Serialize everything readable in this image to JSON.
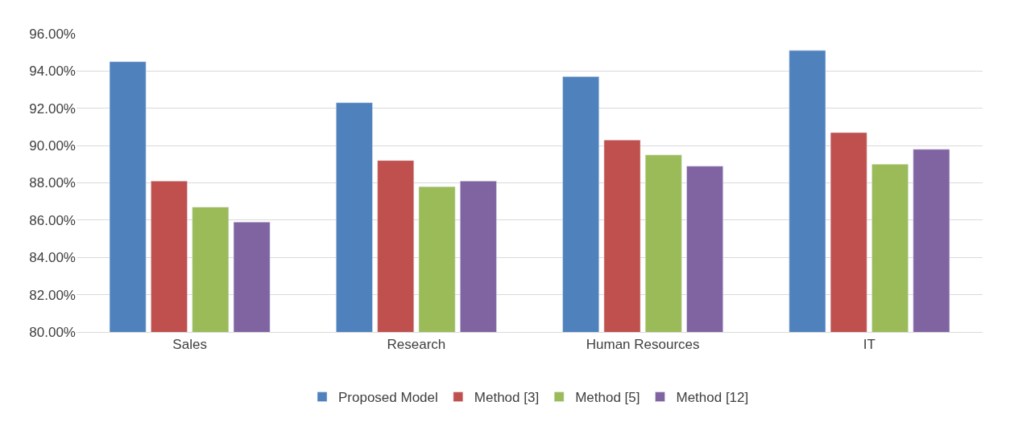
{
  "chart_data": {
    "type": "bar",
    "categories": [
      "Sales",
      "Research",
      "Human Resources",
      "IT"
    ],
    "series": [
      {
        "name": "Proposed Model",
        "color": "#4f81bd",
        "values": [
          94.5,
          92.3,
          93.7,
          95.1
        ]
      },
      {
        "name": "Method [3]",
        "color": "#c0504d",
        "values": [
          88.1,
          89.2,
          90.3,
          90.7
        ]
      },
      {
        "name": "Method [5]",
        "color": "#9bbb59",
        "values": [
          86.7,
          87.8,
          89.5,
          89.0
        ]
      },
      {
        "name": "Method [12]",
        "color": "#8064a2",
        "values": [
          85.9,
          88.1,
          88.9,
          89.8
        ]
      }
    ],
    "ylim": [
      80,
      96
    ],
    "yticks": [
      {
        "value": 80,
        "label": "80.00%"
      },
      {
        "value": 82,
        "label": "82.00%"
      },
      {
        "value": 84,
        "label": "84.00%"
      },
      {
        "value": 86,
        "label": "86.00%"
      },
      {
        "value": 88,
        "label": "88.00%"
      },
      {
        "value": 90,
        "label": "90.00%"
      },
      {
        "value": 92,
        "label": "92.00%"
      },
      {
        "value": 94,
        "label": "94.00%"
      },
      {
        "value": 96,
        "label": "96.00%"
      }
    ],
    "grid": "y",
    "legend": "bottom"
  }
}
